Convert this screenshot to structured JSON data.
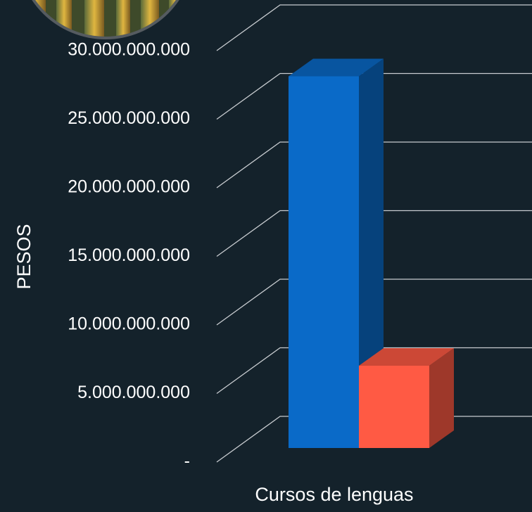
{
  "chart_data": {
    "type": "bar3d",
    "y_axis_label": "PESOS",
    "categories": [
      "Cursos de lenguas"
    ],
    "series": [
      {
        "color": "#0a6ac8",
        "values": [
          27100000000
        ]
      },
      {
        "color": "#ff5a44",
        "values": [
          6000000000
        ]
      }
    ],
    "ylim": [
      0,
      30000000000
    ],
    "yticks": [
      {
        "value": 0,
        "label": "-"
      },
      {
        "value": 5000000000,
        "label": "5.000.000.000"
      },
      {
        "value": 10000000000,
        "label": "10.000.000.000"
      },
      {
        "value": 15000000000,
        "label": "15.000.000.000"
      },
      {
        "value": 20000000000,
        "label": "20.000.000.000"
      },
      {
        "value": 25000000000,
        "label": "25.000.000.000"
      },
      {
        "value": 30000000000,
        "label": "30.000.000.000"
      }
    ],
    "grid": true
  }
}
